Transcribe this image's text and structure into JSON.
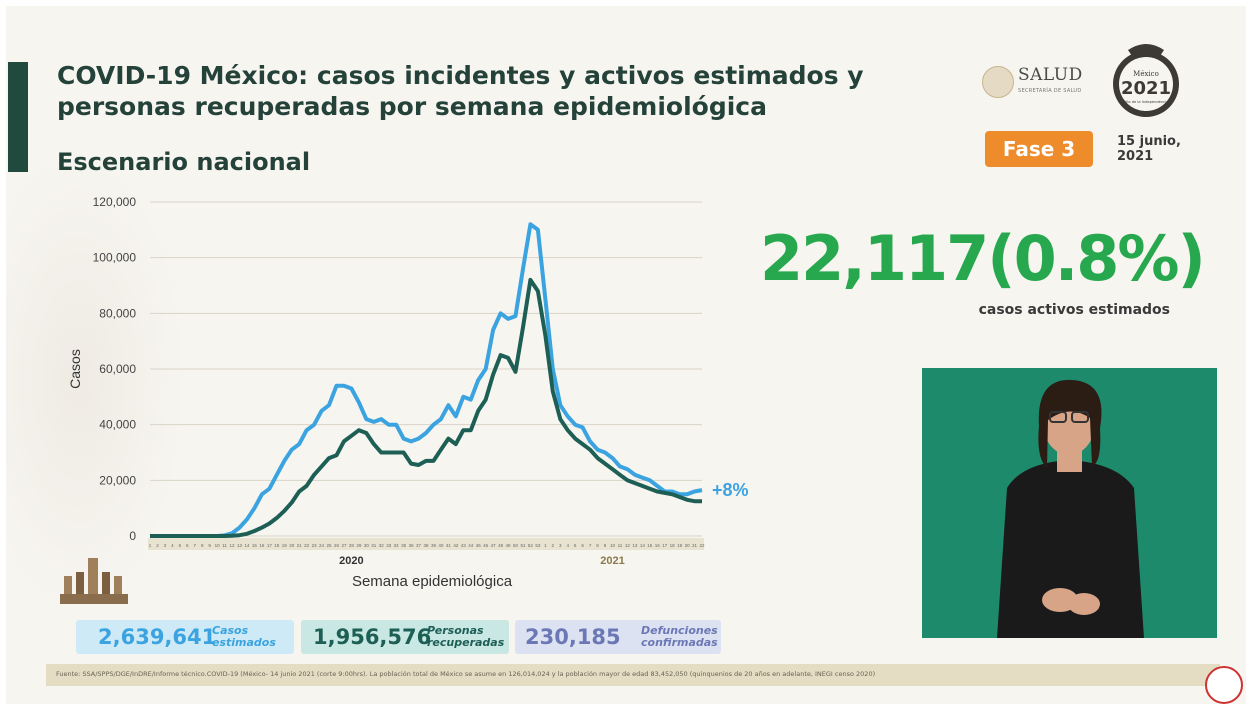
{
  "title": "COVID-19 México: casos incidentes y activos estimados y personas recuperadas por semana epidemiológica",
  "subtitle": "Escenario nacional",
  "header": {
    "salud_logo": "SALUD",
    "salud_sub": "SECRETARÍA DE SALUD",
    "logo_2021_line1": "México",
    "logo_2021_year": "2021",
    "logo_2021_line2": "Año de la Independencia",
    "phase": "Fase 3",
    "date": "15 junio, 2021"
  },
  "active": {
    "value": "22,117(0.8%)",
    "label": "casos activos estimados"
  },
  "stats": [
    {
      "value": "2,639,641",
      "label": "Casos estimados"
    },
    {
      "value": "1,956,576",
      "label": "Personas recuperadas"
    },
    {
      "value": "230,185",
      "label": "Defunciones confirmadas"
    }
  ],
  "footer": "Fuente: SSA/SPPS/DGE/InDRE/Informe técnico.COVID-19 (México- 14 junio 2021 (corte 9:00hrs). La población total de México se asume en 126,014,024 y la población mayor de edad 83,452,050 (quinquenios de 20 años en adelante, INEGI censo 2020)",
  "colors": {
    "incidentes": "#3aa3e0",
    "activos": "#1d5e55",
    "accent": "#27a84e",
    "phase": "#ee8c2b"
  },
  "chart_data": {
    "type": "line",
    "ylabel": "Casos",
    "xlabel": "Semana epidemiológica",
    "ylim": [
      0,
      120000
    ],
    "yticks": [
      0,
      20000,
      40000,
      60000,
      80000,
      100000,
      120000
    ],
    "year_labels": [
      "2020",
      "2021"
    ],
    "annotation": "+8%",
    "grid": true,
    "x": [
      "1",
      "2",
      "3",
      "4",
      "5",
      "6",
      "7",
      "8",
      "9",
      "10",
      "11",
      "12",
      "13",
      "14",
      "15",
      "16",
      "17",
      "18",
      "19",
      "20",
      "21",
      "22",
      "23",
      "24",
      "25",
      "26",
      "27",
      "28",
      "29",
      "30",
      "31",
      "32",
      "33",
      "34",
      "35",
      "36",
      "37",
      "38",
      "39",
      "40",
      "41",
      "42",
      "43",
      "44",
      "45",
      "46",
      "47",
      "48",
      "49",
      "50",
      "51",
      "52",
      "53",
      "1",
      "2",
      "3",
      "4",
      "5",
      "6",
      "7",
      "8",
      "9",
      "10",
      "11",
      "12",
      "13",
      "14",
      "15",
      "16",
      "17",
      "18",
      "19",
      "20",
      "21",
      "22"
    ],
    "series": [
      {
        "values": [
          0,
          0,
          0,
          0,
          0,
          0,
          0,
          0,
          0,
          0,
          200,
          1000,
          3000,
          6000,
          10000,
          15000,
          17000,
          22000,
          27000,
          31000,
          33000,
          38000,
          40000,
          45000,
          47000,
          54000,
          54000,
          53000,
          48000,
          42000,
          41000,
          42000,
          40000,
          40000,
          35000,
          34000,
          35000,
          37000,
          40000,
          42000,
          47000,
          43000,
          50000,
          49000,
          56000,
          60000,
          74000,
          80000,
          78000,
          79000,
          96000,
          112000,
          110000,
          85000,
          60000,
          47000,
          43000,
          40000,
          39000,
          34000,
          31000,
          30000,
          28000,
          25000,
          24000,
          22000,
          21000,
          20000,
          18000,
          16000,
          16000,
          15000,
          15000,
          16000,
          16500
        ]
      },
      {
        "values": [
          0,
          0,
          0,
          0,
          0,
          0,
          0,
          0,
          0,
          0,
          0,
          100,
          300,
          800,
          1800,
          3000,
          4500,
          6500,
          9000,
          12000,
          16000,
          18000,
          22000,
          25000,
          28000,
          29000,
          34000,
          36000,
          38000,
          37000,
          33000,
          30000,
          30000,
          30000,
          30000,
          26000,
          25500,
          27000,
          27000,
          31000,
          35000,
          33000,
          38000,
          38000,
          45000,
          49000,
          58000,
          65000,
          64000,
          59000,
          75000,
          92000,
          88000,
          72000,
          52000,
          42000,
          38000,
          35000,
          33000,
          31000,
          28000,
          26000,
          24000,
          22000,
          20000,
          19000,
          18000,
          17000,
          16000,
          15500,
          15000,
          14000,
          13000,
          12500,
          12500
        ]
      }
    ]
  }
}
